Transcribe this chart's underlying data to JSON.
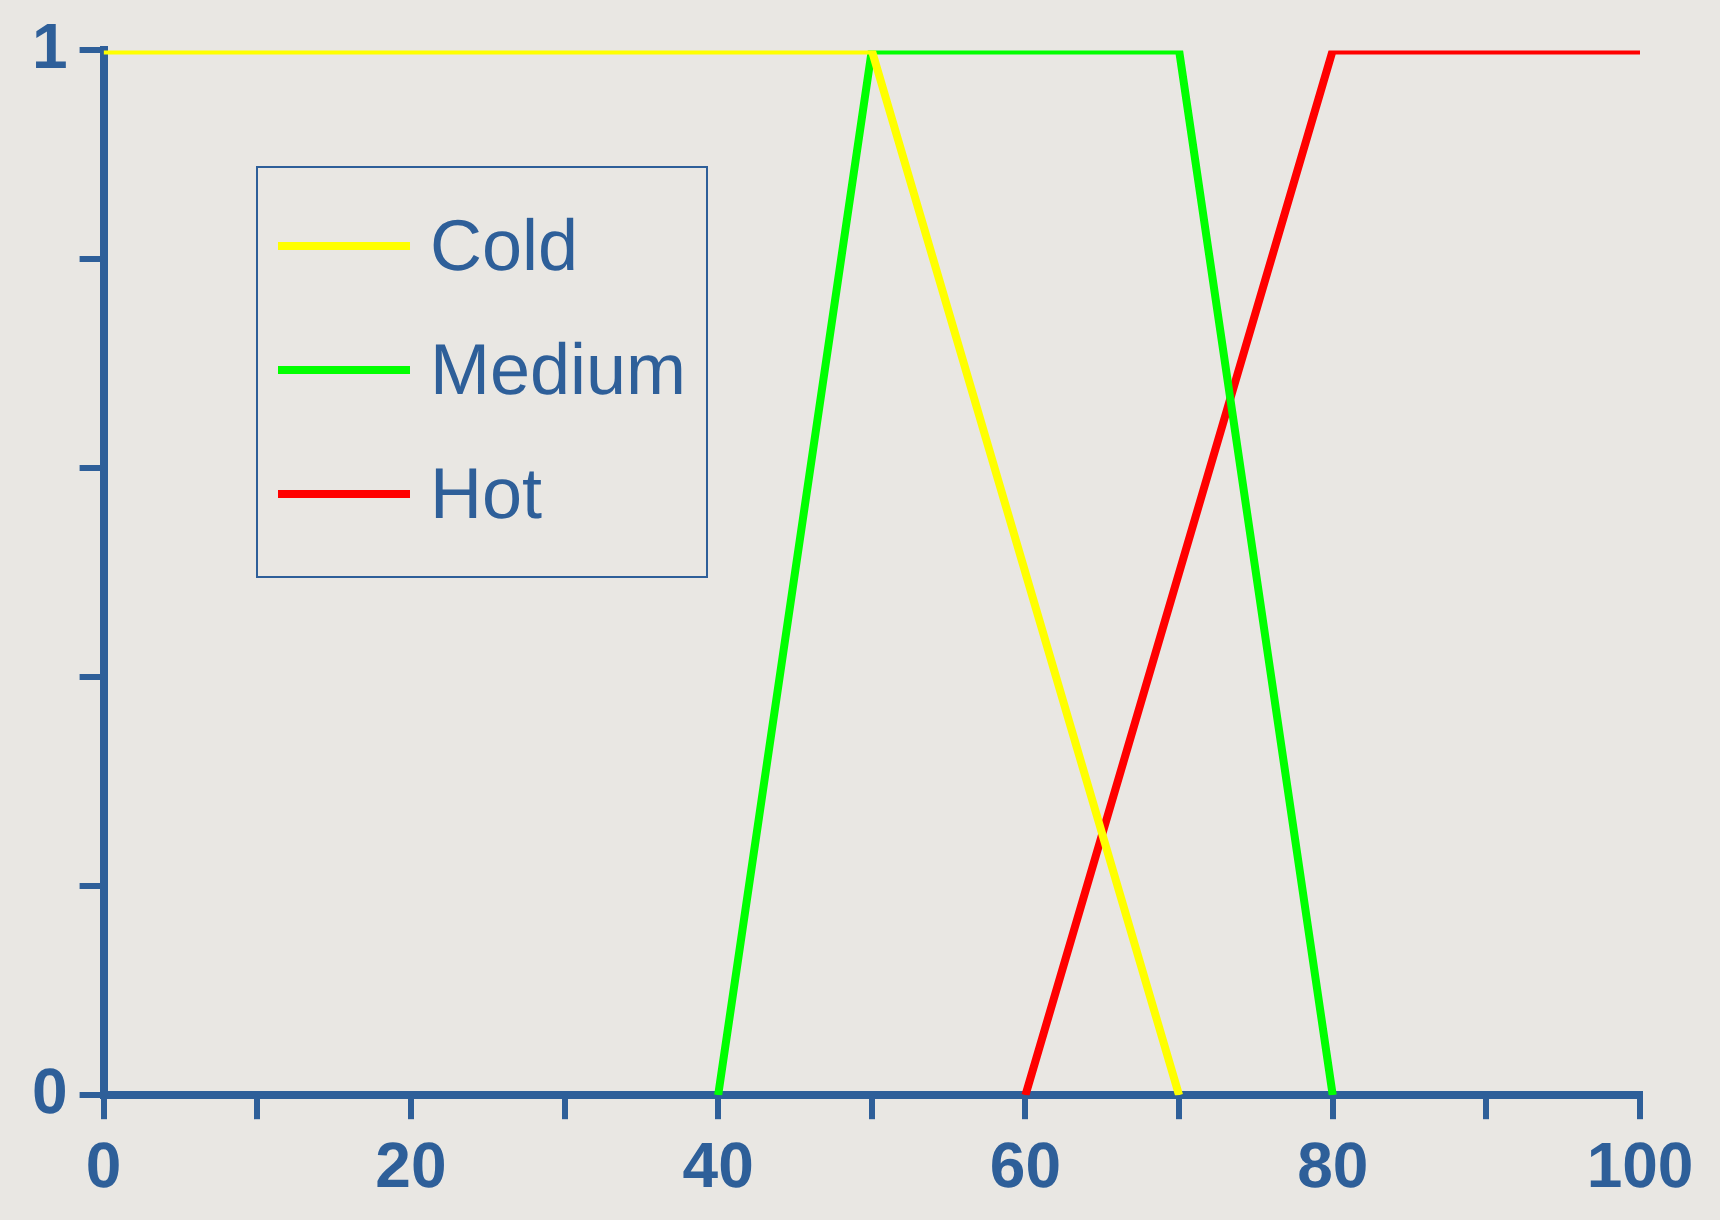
{
  "chart_data": {
    "type": "line",
    "series": [
      {
        "name": "Cold",
        "color": "#ffff00",
        "x": [
          0,
          50,
          70
        ],
        "values": [
          1,
          1,
          0
        ]
      },
      {
        "name": "Medium",
        "color": "#00ff00",
        "x": [
          40,
          50,
          70,
          80
        ],
        "values": [
          0,
          1,
          1,
          0
        ]
      },
      {
        "name": "Hot",
        "color": "#ff0000",
        "x": [
          60,
          80,
          100
        ],
        "values": [
          0,
          1,
          1
        ]
      }
    ],
    "xlim": [
      0,
      100
    ],
    "xticks": [
      0,
      {
        "value": 10,
        "label": null
      },
      20,
      {
        "value": 30,
        "label": null
      },
      40,
      {
        "value": 50,
        "label": null
      },
      60,
      {
        "value": 70,
        "label": null
      },
      80,
      {
        "value": 90,
        "label": null
      },
      100
    ],
    "ylim": [
      0,
      1
    ],
    "yticks": [
      0,
      {
        "value": 0.2,
        "label": null
      },
      {
        "value": 0.4,
        "label": null
      },
      {
        "value": 0.6,
        "label": null
      },
      {
        "value": 0.8,
        "label": null
      },
      1
    ],
    "grid": false,
    "legend": "top left",
    "marker": "none",
    "line_style": "solid"
  }
}
